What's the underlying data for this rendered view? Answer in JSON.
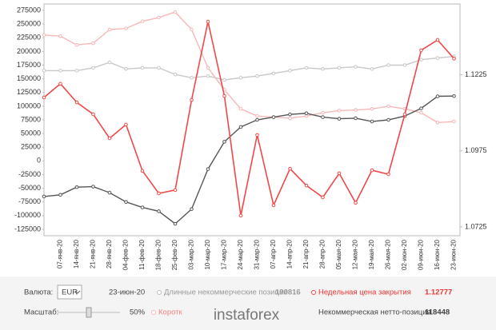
{
  "chart_data": {
    "type": "line",
    "categories": [
      null,
      "07-янв-20",
      "14-янв-20",
      "21-янв-20",
      "28-янв-20",
      "04-фев-20",
      "11-фев-20",
      "18-фев-20",
      "25-фев-20",
      "03-мар-20",
      "10-мар-20",
      "17-мар-20",
      "24-мар-20",
      "31-мар-20",
      "07-апр-20",
      "14-апр-20",
      "21-апр-20",
      "28-апр-20",
      "05-мая-20",
      "12-мая-20",
      "19-мая-20",
      "26-мая-20",
      "02-июн-20",
      "09-июн-20",
      "16-июн-20",
      "23-июн-20"
    ],
    "series": [
      {
        "name": "Длинные некоммерческие позиции",
        "color": "#c8c8c8",
        "values": [
          165000,
          165000,
          165000,
          170000,
          180000,
          168000,
          170000,
          170000,
          158000,
          152000,
          155000,
          148000,
          152000,
          155000,
          160000,
          165000,
          170000,
          168000,
          170000,
          172000,
          168000,
          175000,
          175000,
          185000,
          188000,
          190816
        ]
      },
      {
        "name": "Короткие некоммерческие позиции",
        "color": "#f7b7b7",
        "values": [
          230000,
          228000,
          212000,
          215000,
          240000,
          242000,
          255000,
          262000,
          272000,
          240000,
          170000,
          130000,
          95000,
          82000,
          80000,
          78000,
          82000,
          88000,
          92000,
          93000,
          95000,
          100000,
          95000,
          88000,
          70000,
          72000
        ]
      },
      {
        "name": "Некоммерческая нетто-позиция",
        "color": "#555555",
        "values": [
          -65000,
          -62000,
          -48000,
          -47000,
          -58000,
          -75000,
          -85000,
          -92000,
          -115000,
          -88000,
          -15000,
          35000,
          62000,
          75000,
          80000,
          85000,
          87000,
          80000,
          77000,
          78000,
          72000,
          75000,
          82000,
          96000,
          118000,
          118448
        ]
      },
      {
        "name": "Недельная цена закрытия",
        "color": "#f04848",
        "axis": "y2",
        "values": [
          1.115,
          1.1195,
          1.1134,
          1.1095,
          1.1016,
          1.1061,
          1.0909,
          1.0835,
          1.0846,
          1.1142,
          1.1399,
          1.1155,
          1.0762,
          1.1027,
          1.0796,
          1.0916,
          1.0861,
          1.0822,
          1.0901,
          1.0804,
          1.0911,
          1.0898,
          1.1095,
          1.1305,
          1.1339,
          1.12777
        ]
      }
    ],
    "ylim": [
      -136700,
      286700
    ],
    "yticks": [
      -125000,
      -100000,
      -75000,
      -50000,
      -25000,
      0,
      25000,
      50000,
      75000,
      100000,
      125000,
      150000,
      175000,
      200000,
      225000,
      250000,
      275000
    ],
    "y2lim": [
      1.0696,
      1.1457
    ],
    "y2ticks": [
      1.0725,
      1.0975,
      1.1225
    ],
    "grid": false
  },
  "panel": {
    "currency_label": "Валюта:",
    "currency": "EUR",
    "scale_label": "Масштаб:",
    "scale": "50%",
    "logo": "instaforex"
  }
}
